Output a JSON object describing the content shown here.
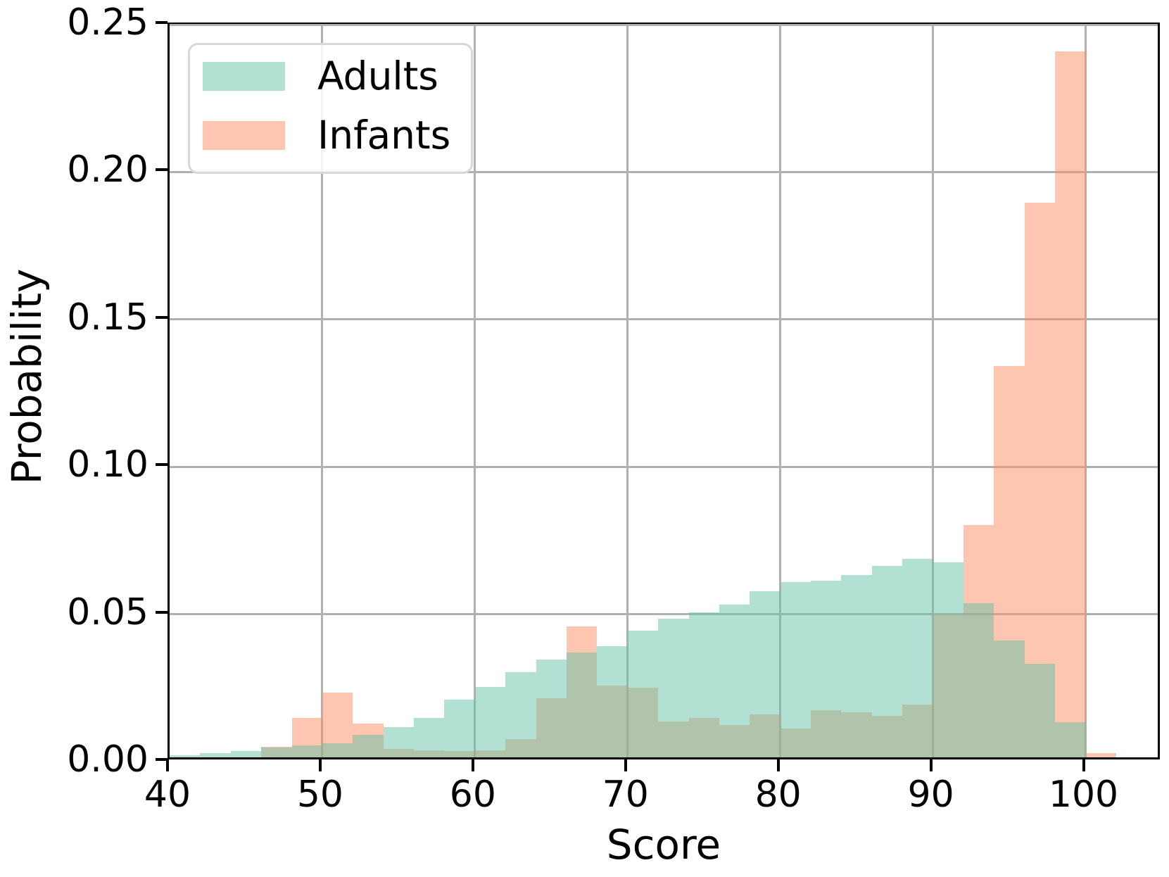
{
  "chart_data": {
    "type": "bar",
    "subtype": "overlaid-probability-histogram",
    "title": "",
    "xlabel": "Score",
    "ylabel": "Probability",
    "xlim": [
      40,
      105
    ],
    "ylim": [
      0,
      0.25
    ],
    "x_ticks": [
      40,
      50,
      60,
      70,
      80,
      90,
      100
    ],
    "x_tick_labels": [
      "40",
      "50",
      "60",
      "70",
      "80",
      "90",
      "100"
    ],
    "y_ticks": [
      0,
      0.05,
      0.1,
      0.15,
      0.2,
      0.25
    ],
    "y_tick_labels": [
      "0.00",
      "0.05",
      "0.10",
      "0.15",
      "0.20",
      "0.25"
    ],
    "bin_width": 2,
    "bin_starts": [
      40,
      42,
      44,
      46,
      48,
      50,
      52,
      54,
      56,
      58,
      60,
      62,
      64,
      66,
      68,
      70,
      72,
      74,
      76,
      78,
      80,
      82,
      84,
      86,
      88,
      90,
      92,
      94,
      96,
      98,
      100
    ],
    "series": [
      {
        "name": "Adults",
        "color": "#66C2A5",
        "alpha": 0.5,
        "values": [
          0.0007,
          0.0014,
          0.0022,
          0.0034,
          0.004,
          0.0047,
          0.0076,
          0.0103,
          0.0134,
          0.0195,
          0.024,
          0.0288,
          0.0332,
          0.0357,
          0.0378,
          0.0429,
          0.047,
          0.0491,
          0.0519,
          0.0563,
          0.0595,
          0.06,
          0.0618,
          0.0649,
          0.0674,
          0.0662,
          0.0523,
          0.0396,
          0.0318,
          0.012,
          0
        ]
      },
      {
        "name": "Infants",
        "color": "#FC8D62",
        "alpha": 0.5,
        "values": [
          0,
          0,
          0,
          0.0037,
          0.0133,
          0.022,
          0.0115,
          0.0028,
          0.0023,
          0.0022,
          0.0025,
          0.0061,
          0.02,
          0.0445,
          0.0244,
          0.0236,
          0.0121,
          0.0133,
          0.0109,
          0.0145,
          0.0097,
          0.0161,
          0.0153,
          0.0141,
          0.018,
          0.0485,
          0.0788,
          0.1328,
          0.1882,
          0.2394,
          0.0015
        ]
      }
    ],
    "legend": {
      "position": "upper-left",
      "entries": [
        "Adults",
        "Infants"
      ]
    },
    "grid": true,
    "colors": {
      "grid": "#b0b0b0",
      "axis": "#000000",
      "legend_border": "#d8d8d8",
      "background": "#ffffff"
    }
  }
}
